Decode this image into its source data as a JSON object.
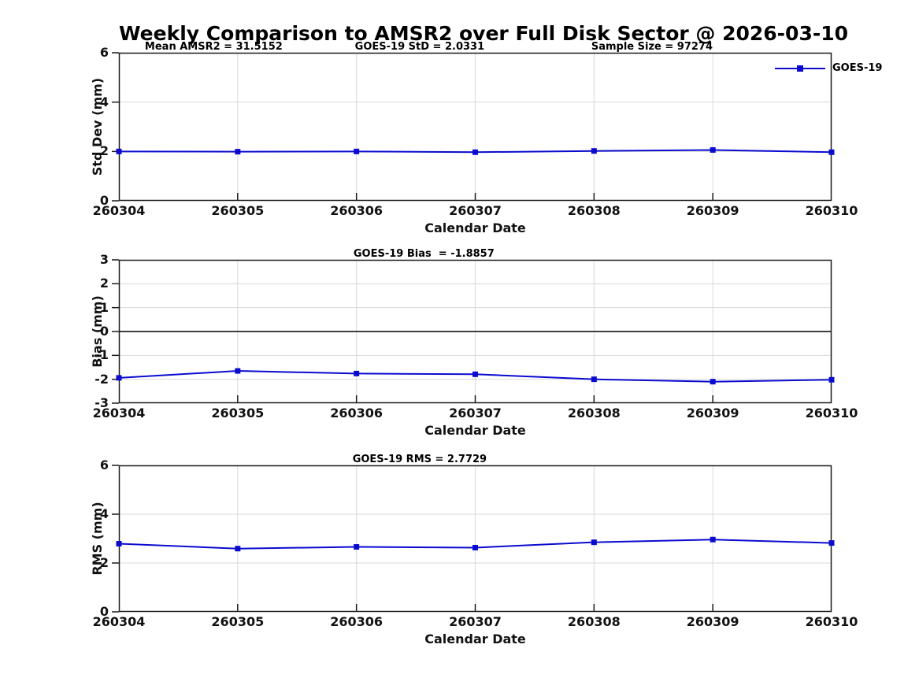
{
  "title": "Weekly Comparison to AMSR2 over Full Disk Sector @ 2026-03-10",
  "legend": {
    "label": "GOES-19"
  },
  "colors": {
    "series": "#0b0bd0",
    "grid": "#d9d9d9",
    "axis": "#1a1a1a",
    "zero_line": "#3d3d3d",
    "text": "#000000"
  },
  "chart_data": [
    {
      "type": "line",
      "categories": [
        "260304",
        "260305",
        "260306",
        "260307",
        "260308",
        "260309",
        "260310"
      ],
      "series": [
        {
          "name": "GOES-19",
          "values": [
            2.0,
            1.99,
            2.0,
            1.97,
            2.02,
            2.06,
            1.97
          ]
        }
      ],
      "xlabel": "Calendar Date",
      "ylabel": "Std Dev (mm)",
      "ylim": [
        0,
        6
      ],
      "yticks": [
        0,
        2,
        4,
        6
      ],
      "grid": true,
      "zero_line": false,
      "legend_position": "top-right-outside",
      "title_annotations": [
        {
          "text": "Mean AMSR2 = 31.5152",
          "x": 0.133
        },
        {
          "text": "GOES-19 StD = 2.0331",
          "x": 0.422
        },
        {
          "text": "Sample Size = 97274",
          "x": 0.748
        }
      ]
    },
    {
      "type": "line",
      "categories": [
        "260304",
        "260305",
        "260306",
        "260307",
        "260308",
        "260309",
        "260310"
      ],
      "series": [
        {
          "name": "GOES-19",
          "values": [
            -1.94,
            -1.65,
            -1.76,
            -1.79,
            -2.0,
            -2.1,
            -2.02
          ]
        }
      ],
      "xlabel": "Calendar Date",
      "ylabel": "Bias (mm)",
      "ylim": [
        -3,
        3
      ],
      "yticks": [
        -3,
        -2,
        -1,
        0,
        1,
        2,
        3
      ],
      "grid": true,
      "zero_line": true,
      "title_annotations": [
        {
          "text": "GOES-19 Bias  = -1.8857",
          "x": 0.428
        }
      ]
    },
    {
      "type": "line",
      "categories": [
        "260304",
        "260305",
        "260306",
        "260307",
        "260308",
        "260309",
        "260310"
      ],
      "series": [
        {
          "name": "GOES-19",
          "values": [
            2.79,
            2.59,
            2.66,
            2.63,
            2.85,
            2.96,
            2.82
          ]
        }
      ],
      "xlabel": "Calendar Date",
      "ylabel": "RMS (mm)",
      "ylim": [
        0,
        6
      ],
      "yticks": [
        0,
        2,
        4,
        6
      ],
      "grid": true,
      "zero_line": false,
      "title_annotations": [
        {
          "text": "GOES-19 RMS = 2.7729",
          "x": 0.422
        }
      ]
    }
  ]
}
